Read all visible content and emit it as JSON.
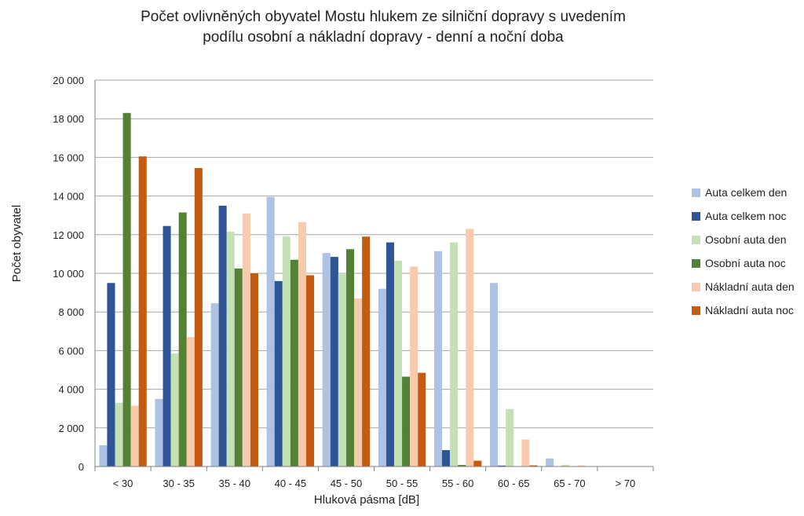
{
  "chart_data": {
    "type": "bar",
    "title_lines": [
      "Počet ovlivněných obyvatel Mostu hlukem ze silniční dopravy s uvedením",
      "podílu osobní a nákladní dopravy - denní a noční doba"
    ],
    "xlabel": "Hluková pásma [dB]",
    "ylabel": "Počet obyvatel",
    "ylim": [
      0,
      20000
    ],
    "y_ticks": [
      "0",
      "2 000",
      "4 000",
      "6 000",
      "8 000",
      "10 000",
      "12 000",
      "14 000",
      "16 000",
      "18 000",
      "20 000"
    ],
    "y_tick_values": [
      0,
      2000,
      4000,
      6000,
      8000,
      10000,
      12000,
      14000,
      16000,
      18000,
      20000
    ],
    "grid": true,
    "legend_position": "right",
    "categories": [
      "< 30",
      "30 - 35",
      "35 - 40",
      "40 - 45",
      "45 - 50",
      "50 - 55",
      "55 - 60",
      "60 - 65",
      "65 - 70",
      "> 70"
    ],
    "series": [
      {
        "name": "Auta celkem den",
        "color": "#aec3e4",
        "values": [
          1100,
          3500,
          8450,
          13950,
          11050,
          9200,
          11150,
          9500,
          420,
          20
        ]
      },
      {
        "name": "Auta celkem noc",
        "color": "#2f5597",
        "values": [
          9500,
          12450,
          13500,
          9600,
          10850,
          11600,
          850,
          50,
          10,
          0
        ]
      },
      {
        "name": "Osobní auta den",
        "color": "#c5e0b4",
        "values": [
          3300,
          5850,
          12150,
          11900,
          9950,
          10650,
          11600,
          2980,
          90,
          10
        ]
      },
      {
        "name": "Osobní auta noc",
        "color": "#548235",
        "values": [
          18300,
          13150,
          10250,
          10700,
          11250,
          4650,
          80,
          20,
          0,
          0
        ]
      },
      {
        "name": "Nákladní auta den",
        "color": "#f8cbad",
        "values": [
          3150,
          6700,
          13100,
          12650,
          8700,
          10350,
          12300,
          1400,
          60,
          10
        ]
      },
      {
        "name": "Nákladní auta noc",
        "color": "#c55a11",
        "values": [
          16050,
          15450,
          10000,
          9900,
          11900,
          4850,
          300,
          60,
          0,
          0
        ]
      }
    ]
  }
}
